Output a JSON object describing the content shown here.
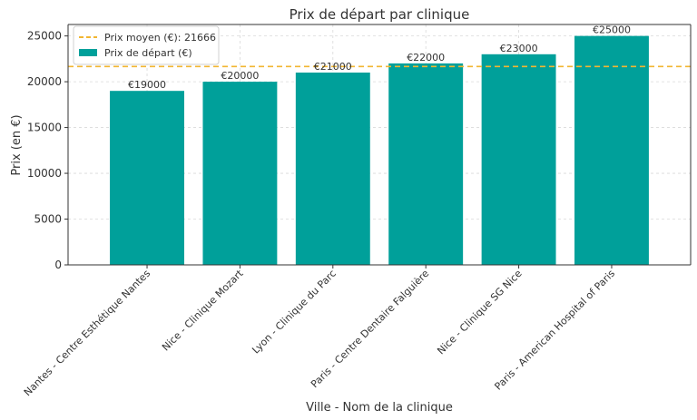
{
  "chart_data": {
    "type": "bar",
    "title": "Prix de départ par clinique",
    "xlabel": "Ville - Nom de la clinique",
    "ylabel": "Prix (en €)",
    "categories": [
      "Nantes - Centre Esthétique Nantes",
      "Nice - Clinique Mozart",
      "Lyon - Clinique du Parc",
      "Paris - Centre Dentaire Falguière",
      "Nice - Clinique SG Nice",
      "Paris - American Hospital of Paris"
    ],
    "series": [
      {
        "name": "Prix de départ (€)",
        "values": [
          19000,
          20000,
          21000,
          22000,
          23000,
          25000
        ],
        "color": "#00a09a"
      }
    ],
    "data_labels": [
      "€19000",
      "€20000",
      "€21000",
      "€22000",
      "€23000",
      "€25000"
    ],
    "reference_line": {
      "name": "Prix moyen (€): 21666",
      "value": 21666,
      "color": "#f2b632"
    },
    "ylim": [
      0,
      26250
    ],
    "yticks": [
      0,
      5000,
      10000,
      15000,
      20000,
      25000
    ],
    "grid": true,
    "legend_position": "top-left"
  }
}
